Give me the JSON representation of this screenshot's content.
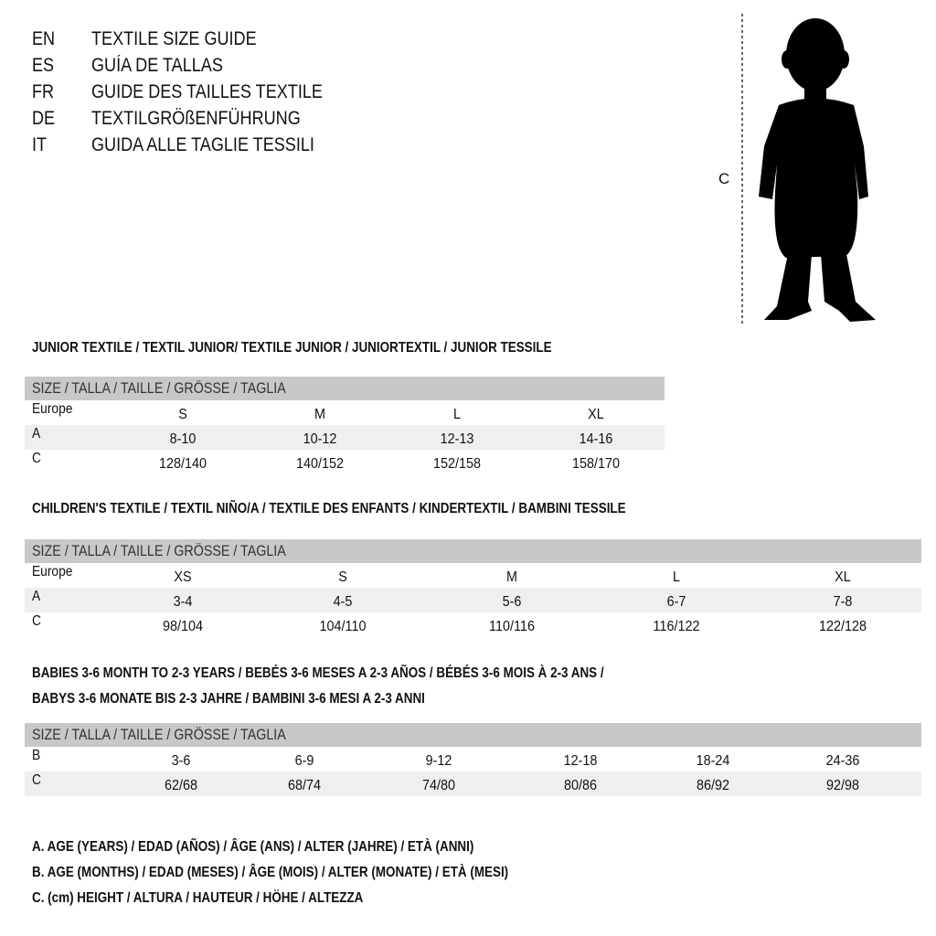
{
  "languages": [
    {
      "code": "EN",
      "title": "TEXTILE SIZE GUIDE"
    },
    {
      "code": "ES",
      "title": "GUÍA DE TALLAS"
    },
    {
      "code": "FR",
      "title": "GUIDE DES TAILLES TEXTILE"
    },
    {
      "code": "DE",
      "title": "TEXTILGRÖßENFÜHRUNG"
    },
    {
      "code": "IT",
      "title": "GUIDA ALLE TAGLIE TESSILI"
    }
  ],
  "figure": {
    "measure_label": "C",
    "icon": "child-silhouette"
  },
  "size_header": "SIZE / TALLA / TAILLE / GRÖSSE / TAGLIA",
  "junior": {
    "title": "JUNIOR TEXTILE / TEXTIL JUNIOR/ TEXTILE JUNIOR / JUNIORTEXTIL / JUNIOR TESSILE",
    "rows": [
      {
        "label": "Europe",
        "values": [
          "S",
          "M",
          "L",
          "XL"
        ]
      },
      {
        "label": "A",
        "values": [
          "8-10",
          "10-12",
          "12-13",
          "14-16"
        ]
      },
      {
        "label": "C",
        "values": [
          "128/140",
          "140/152",
          "152/158",
          "158/170"
        ]
      }
    ]
  },
  "children": {
    "title": "CHILDREN'S TEXTILE / TEXTIL NIÑO/A / TEXTILE DES ENFANTS / KINDERTEXTIL / BAMBINI TESSILE",
    "rows": [
      {
        "label": "Europe",
        "values": [
          "XS",
          "S",
          "M",
          "L",
          "XL"
        ]
      },
      {
        "label": "A",
        "values": [
          "3-4",
          "4-5",
          "5-6",
          "6-7",
          "7-8"
        ]
      },
      {
        "label": "C",
        "values": [
          "98/104",
          "104/110",
          "110/116",
          "116/122",
          "122/128"
        ]
      }
    ]
  },
  "babies": {
    "title_line1": "BABIES 3-6 MONTH TO 2-3 YEARS / BEBÉS 3-6 MESES A 2-3 AÑOS / BÉBÉS 3-6 MOIS À 2-3 ANS /",
    "title_line2": "BABYS 3-6 MONATE BIS 2-3 JAHRE / BAMBINI 3-6 MESI A 2-3 ANNI",
    "rows": [
      {
        "label": "B",
        "values": [
          "3-6",
          "6-9",
          "9-12",
          "12-18",
          "18-24",
          "24-36"
        ]
      },
      {
        "label": "C",
        "values": [
          "62/68",
          "68/74",
          "74/80",
          "80/86",
          "86/92",
          "92/98"
        ]
      }
    ]
  },
  "legend": [
    "A. AGE (YEARS) / EDAD (AÑOS) / ÂGE (ANS) / ALTER (JAHRE) / ETÀ (ANNI)",
    "B. AGE (MONTHS) / EDAD (MESES) / ÂGE (MOIS) / ALTER (MONATE) / ETÀ (MESI)",
    "C. (cm) HEIGHT / ALTURA / HAUTEUR / HÖHE / ALTEZZA"
  ],
  "colors": {
    "header_bg": "#c8c8c8",
    "stripe_bg": "#efefef"
  }
}
